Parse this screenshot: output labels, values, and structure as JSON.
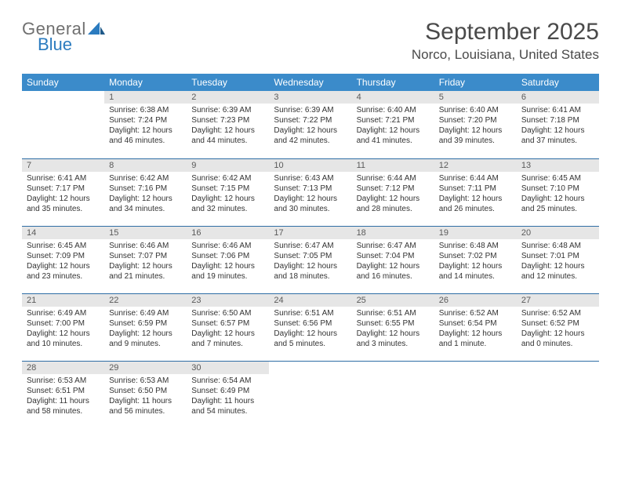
{
  "brand": {
    "general": "General",
    "blue": "Blue"
  },
  "title": "September 2025",
  "location": "Norco, Louisiana, United States",
  "colors": {
    "header_bg": "#3b8bca",
    "header_text": "#ffffff",
    "daynum_bg": "#e6e6e6",
    "daynum_text": "#5a5a5a",
    "cell_border": "#2f6ea5",
    "body_text": "#333333",
    "title_text": "#4a4a4a",
    "logo_gray": "#707070",
    "logo_blue": "#2b7bbf"
  },
  "weekdays": [
    "Sunday",
    "Monday",
    "Tuesday",
    "Wednesday",
    "Thursday",
    "Friday",
    "Saturday"
  ],
  "weeks": [
    [
      null,
      {
        "n": "1",
        "sunrise": "Sunrise: 6:38 AM",
        "sunset": "Sunset: 7:24 PM",
        "day1": "Daylight: 12 hours",
        "day2": "and 46 minutes."
      },
      {
        "n": "2",
        "sunrise": "Sunrise: 6:39 AM",
        "sunset": "Sunset: 7:23 PM",
        "day1": "Daylight: 12 hours",
        "day2": "and 44 minutes."
      },
      {
        "n": "3",
        "sunrise": "Sunrise: 6:39 AM",
        "sunset": "Sunset: 7:22 PM",
        "day1": "Daylight: 12 hours",
        "day2": "and 42 minutes."
      },
      {
        "n": "4",
        "sunrise": "Sunrise: 6:40 AM",
        "sunset": "Sunset: 7:21 PM",
        "day1": "Daylight: 12 hours",
        "day2": "and 41 minutes."
      },
      {
        "n": "5",
        "sunrise": "Sunrise: 6:40 AM",
        "sunset": "Sunset: 7:20 PM",
        "day1": "Daylight: 12 hours",
        "day2": "and 39 minutes."
      },
      {
        "n": "6",
        "sunrise": "Sunrise: 6:41 AM",
        "sunset": "Sunset: 7:18 PM",
        "day1": "Daylight: 12 hours",
        "day2": "and 37 minutes."
      }
    ],
    [
      {
        "n": "7",
        "sunrise": "Sunrise: 6:41 AM",
        "sunset": "Sunset: 7:17 PM",
        "day1": "Daylight: 12 hours",
        "day2": "and 35 minutes."
      },
      {
        "n": "8",
        "sunrise": "Sunrise: 6:42 AM",
        "sunset": "Sunset: 7:16 PM",
        "day1": "Daylight: 12 hours",
        "day2": "and 34 minutes."
      },
      {
        "n": "9",
        "sunrise": "Sunrise: 6:42 AM",
        "sunset": "Sunset: 7:15 PM",
        "day1": "Daylight: 12 hours",
        "day2": "and 32 minutes."
      },
      {
        "n": "10",
        "sunrise": "Sunrise: 6:43 AM",
        "sunset": "Sunset: 7:13 PM",
        "day1": "Daylight: 12 hours",
        "day2": "and 30 minutes."
      },
      {
        "n": "11",
        "sunrise": "Sunrise: 6:44 AM",
        "sunset": "Sunset: 7:12 PM",
        "day1": "Daylight: 12 hours",
        "day2": "and 28 minutes."
      },
      {
        "n": "12",
        "sunrise": "Sunrise: 6:44 AM",
        "sunset": "Sunset: 7:11 PM",
        "day1": "Daylight: 12 hours",
        "day2": "and 26 minutes."
      },
      {
        "n": "13",
        "sunrise": "Sunrise: 6:45 AM",
        "sunset": "Sunset: 7:10 PM",
        "day1": "Daylight: 12 hours",
        "day2": "and 25 minutes."
      }
    ],
    [
      {
        "n": "14",
        "sunrise": "Sunrise: 6:45 AM",
        "sunset": "Sunset: 7:09 PM",
        "day1": "Daylight: 12 hours",
        "day2": "and 23 minutes."
      },
      {
        "n": "15",
        "sunrise": "Sunrise: 6:46 AM",
        "sunset": "Sunset: 7:07 PM",
        "day1": "Daylight: 12 hours",
        "day2": "and 21 minutes."
      },
      {
        "n": "16",
        "sunrise": "Sunrise: 6:46 AM",
        "sunset": "Sunset: 7:06 PM",
        "day1": "Daylight: 12 hours",
        "day2": "and 19 minutes."
      },
      {
        "n": "17",
        "sunrise": "Sunrise: 6:47 AM",
        "sunset": "Sunset: 7:05 PM",
        "day1": "Daylight: 12 hours",
        "day2": "and 18 minutes."
      },
      {
        "n": "18",
        "sunrise": "Sunrise: 6:47 AM",
        "sunset": "Sunset: 7:04 PM",
        "day1": "Daylight: 12 hours",
        "day2": "and 16 minutes."
      },
      {
        "n": "19",
        "sunrise": "Sunrise: 6:48 AM",
        "sunset": "Sunset: 7:02 PM",
        "day1": "Daylight: 12 hours",
        "day2": "and 14 minutes."
      },
      {
        "n": "20",
        "sunrise": "Sunrise: 6:48 AM",
        "sunset": "Sunset: 7:01 PM",
        "day1": "Daylight: 12 hours",
        "day2": "and 12 minutes."
      }
    ],
    [
      {
        "n": "21",
        "sunrise": "Sunrise: 6:49 AM",
        "sunset": "Sunset: 7:00 PM",
        "day1": "Daylight: 12 hours",
        "day2": "and 10 minutes."
      },
      {
        "n": "22",
        "sunrise": "Sunrise: 6:49 AM",
        "sunset": "Sunset: 6:59 PM",
        "day1": "Daylight: 12 hours",
        "day2": "and 9 minutes."
      },
      {
        "n": "23",
        "sunrise": "Sunrise: 6:50 AM",
        "sunset": "Sunset: 6:57 PM",
        "day1": "Daylight: 12 hours",
        "day2": "and 7 minutes."
      },
      {
        "n": "24",
        "sunrise": "Sunrise: 6:51 AM",
        "sunset": "Sunset: 6:56 PM",
        "day1": "Daylight: 12 hours",
        "day2": "and 5 minutes."
      },
      {
        "n": "25",
        "sunrise": "Sunrise: 6:51 AM",
        "sunset": "Sunset: 6:55 PM",
        "day1": "Daylight: 12 hours",
        "day2": "and 3 minutes."
      },
      {
        "n": "26",
        "sunrise": "Sunrise: 6:52 AM",
        "sunset": "Sunset: 6:54 PM",
        "day1": "Daylight: 12 hours",
        "day2": "and 1 minute."
      },
      {
        "n": "27",
        "sunrise": "Sunrise: 6:52 AM",
        "sunset": "Sunset: 6:52 PM",
        "day1": "Daylight: 12 hours",
        "day2": "and 0 minutes."
      }
    ],
    [
      {
        "n": "28",
        "sunrise": "Sunrise: 6:53 AM",
        "sunset": "Sunset: 6:51 PM",
        "day1": "Daylight: 11 hours",
        "day2": "and 58 minutes."
      },
      {
        "n": "29",
        "sunrise": "Sunrise: 6:53 AM",
        "sunset": "Sunset: 6:50 PM",
        "day1": "Daylight: 11 hours",
        "day2": "and 56 minutes."
      },
      {
        "n": "30",
        "sunrise": "Sunrise: 6:54 AM",
        "sunset": "Sunset: 6:49 PM",
        "day1": "Daylight: 11 hours",
        "day2": "and 54 minutes."
      },
      null,
      null,
      null,
      null
    ]
  ]
}
